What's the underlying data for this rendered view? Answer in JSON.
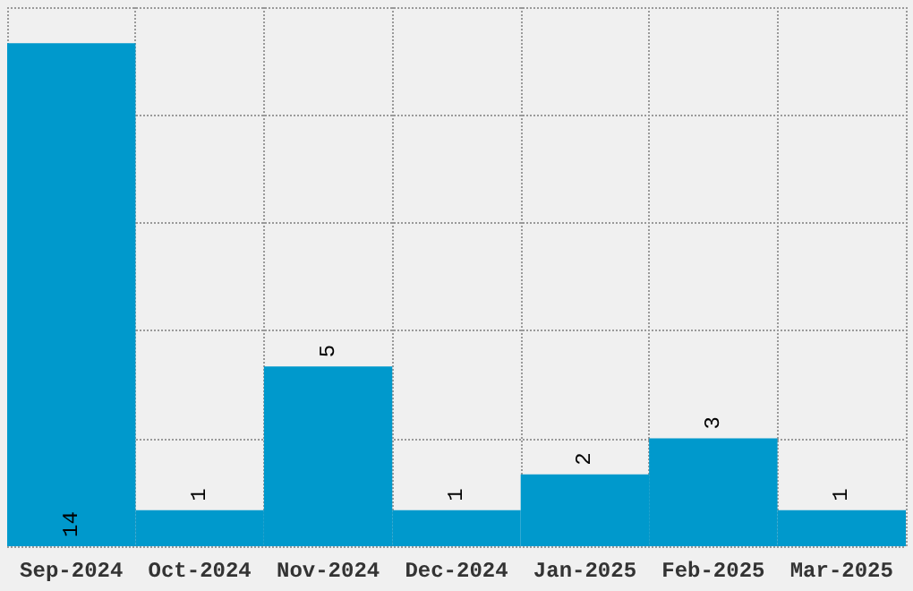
{
  "chart_data": {
    "type": "bar",
    "categories": [
      "Sep-2024",
      "Oct-2024",
      "Nov-2024",
      "Dec-2024",
      "Jan-2025",
      "Feb-2025",
      "Mar-2025"
    ],
    "values": [
      14,
      1,
      5,
      1,
      2,
      3,
      1
    ],
    "color": "#0099cc",
    "data_labels": true,
    "grid": true,
    "tick_labels": "x"
  }
}
